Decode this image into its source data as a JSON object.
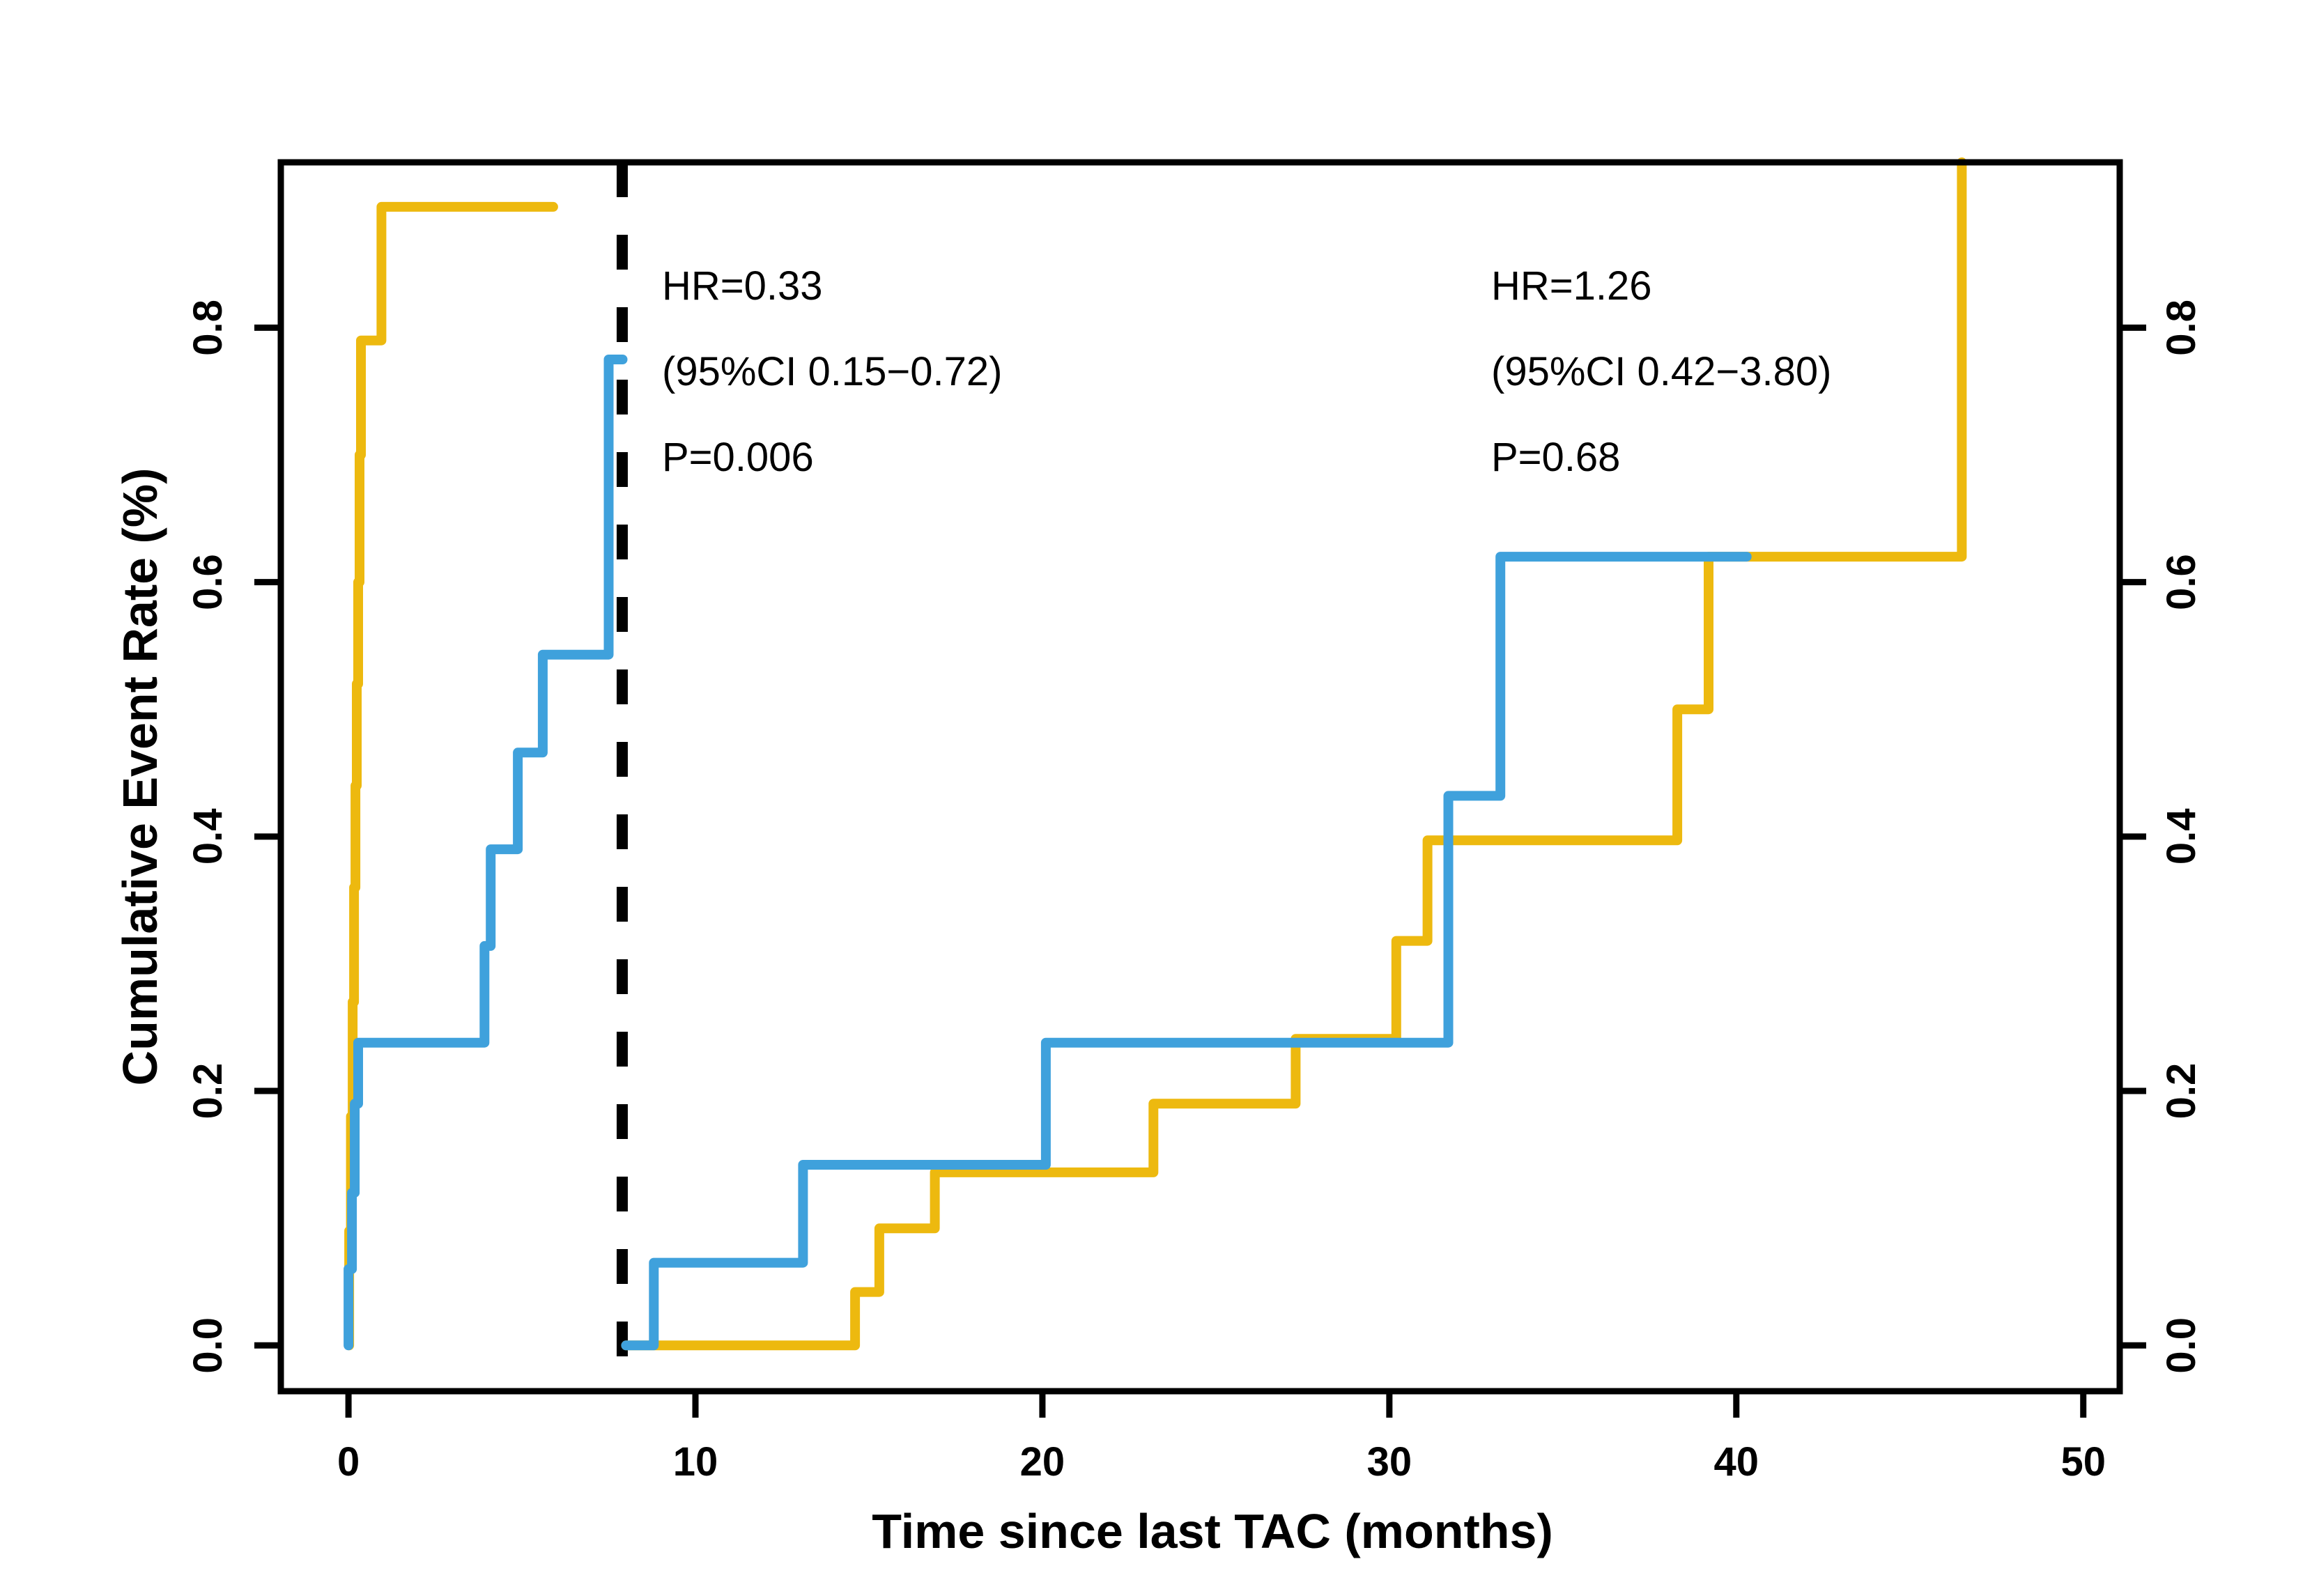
{
  "figure": {
    "x_axis_title": "Time since last TAC (months)",
    "y_axis_title": "Cumulative Event Rate (%)"
  },
  "annotations": {
    "left": {
      "line1": "HR=0.33",
      "line2": "(95%CI 0.15−0.72)",
      "line3": "P=0.006"
    },
    "right": {
      "line1": "HR=1.26",
      "line2": "(95%CI 0.42−3.80)",
      "line3": "P=0.68"
    }
  },
  "colors": {
    "blue": "#3FA1DC",
    "gold": "#EDB90F",
    "axis": "#000000",
    "background": "#FFFFFF"
  },
  "chart_data": {
    "type": "line",
    "subtype": "kaplan-meier-step",
    "title": "",
    "xlabel": "Time since last TAC (months)",
    "ylabel": "Cumulative Event Rate (%)",
    "xlim": [
      -1.95,
      51.05
    ],
    "ylim": [
      -0.036,
      0.93
    ],
    "grid": false,
    "legend_position": "none",
    "x_ticks": [
      {
        "value": 0,
        "label": "0"
      },
      {
        "value": 10,
        "label": "10"
      },
      {
        "value": 20,
        "label": "20"
      },
      {
        "value": 30,
        "label": "30"
      },
      {
        "value": 40,
        "label": "40"
      },
      {
        "value": 50,
        "label": "50"
      }
    ],
    "y_ticks": [
      {
        "value": 0.0,
        "label": "0.0"
      },
      {
        "value": 0.2,
        "label": "0.2"
      },
      {
        "value": 0.4,
        "label": "0.4"
      },
      {
        "value": 0.6,
        "label": "0.6"
      },
      {
        "value": 0.8,
        "label": "0.8"
      }
    ],
    "reference_line_x": 7.89,
    "series": [
      {
        "name": "gold_pre8",
        "color_key": "gold",
        "points": [
          [
            0.02,
            0
          ],
          [
            0.02,
            0.09
          ],
          [
            0.07,
            0.09
          ],
          [
            0.07,
            0.18
          ],
          [
            0.12,
            0.18
          ],
          [
            0.12,
            0.27
          ],
          [
            0.16,
            0.27
          ],
          [
            0.16,
            0.36
          ],
          [
            0.2,
            0.36
          ],
          [
            0.2,
            0.44
          ],
          [
            0.24,
            0.44
          ],
          [
            0.24,
            0.52
          ],
          [
            0.28,
            0.52
          ],
          [
            0.28,
            0.6
          ],
          [
            0.32,
            0.6
          ],
          [
            0.32,
            0.7
          ],
          [
            0.36,
            0.7
          ],
          [
            0.36,
            0.79
          ],
          [
            0.95,
            0.79
          ],
          [
            0.95,
            0.895
          ],
          [
            5.9,
            0.895
          ]
        ]
      },
      {
        "name": "gold_post8",
        "color_key": "gold",
        "points": [
          [
            8.0,
            0
          ],
          [
            14.6,
            0
          ],
          [
            14.6,
            0.042
          ],
          [
            15.3,
            0.042
          ],
          [
            15.3,
            0.092
          ],
          [
            16.9,
            0.092
          ],
          [
            16.9,
            0.136
          ],
          [
            23.2,
            0.136
          ],
          [
            23.2,
            0.19
          ],
          [
            27.3,
            0.19
          ],
          [
            27.3,
            0.241
          ],
          [
            30.2,
            0.241
          ],
          [
            30.2,
            0.318
          ],
          [
            31.1,
            0.318
          ],
          [
            31.1,
            0.397
          ],
          [
            38.3,
            0.397
          ],
          [
            38.3,
            0.5
          ],
          [
            39.2,
            0.5
          ],
          [
            39.2,
            0.62
          ],
          [
            46.5,
            0.62
          ],
          [
            46.5,
            0.93
          ]
        ]
      },
      {
        "name": "blue_pre8",
        "color_key": "blue",
        "points": [
          [
            0,
            0
          ],
          [
            0,
            0.06
          ],
          [
            0.1,
            0.06
          ],
          [
            0.1,
            0.12
          ],
          [
            0.18,
            0.12
          ],
          [
            0.18,
            0.19
          ],
          [
            0.28,
            0.19
          ],
          [
            0.28,
            0.238
          ],
          [
            3.92,
            0.238
          ],
          [
            3.92,
            0.314
          ],
          [
            4.1,
            0.314
          ],
          [
            4.1,
            0.39
          ],
          [
            4.88,
            0.39
          ],
          [
            4.88,
            0.466
          ],
          [
            5.6,
            0.466
          ],
          [
            5.6,
            0.543
          ],
          [
            7.5,
            0.543
          ],
          [
            7.5,
            0.775
          ],
          [
            7.9,
            0.775
          ]
        ]
      },
      {
        "name": "blue_post8",
        "color_key": "blue",
        "points": [
          [
            8.0,
            0
          ],
          [
            8.8,
            0
          ],
          [
            8.8,
            0.065
          ],
          [
            13.1,
            0.065
          ],
          [
            13.1,
            0.142
          ],
          [
            20.1,
            0.142
          ],
          [
            20.1,
            0.238
          ],
          [
            31.7,
            0.238
          ],
          [
            31.7,
            0.432
          ],
          [
            33.2,
            0.432
          ],
          [
            33.2,
            0.62
          ],
          [
            40.3,
            0.62
          ]
        ]
      }
    ]
  }
}
